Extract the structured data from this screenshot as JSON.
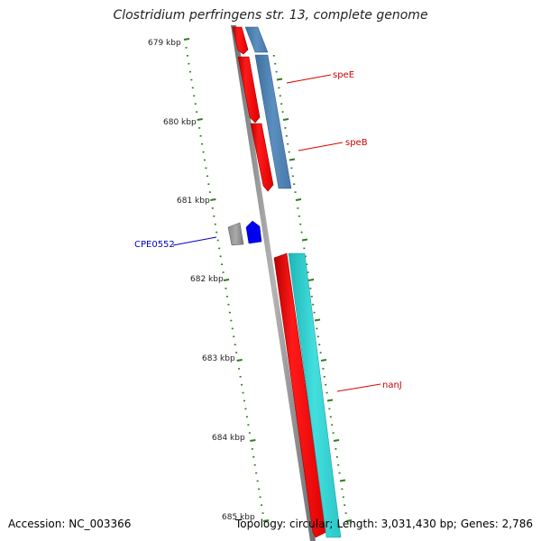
{
  "title": "Clostridium perfringens str. 13, complete genome",
  "footer": {
    "accession": "Accession: NC_003366",
    "topology": "Topology: circular;",
    "length": "Length: 3,031,430 bp;",
    "genes": "Genes: 2,786"
  },
  "ruler": {
    "ticks": [
      "679 kbp",
      "680 kbp",
      "681 kbp",
      "682 kbp",
      "683 kbp",
      "684 kbp",
      "685 kbp"
    ],
    "tick_color": "#2e7d1e"
  },
  "genes": [
    {
      "name": "speE",
      "label_color": "#cc0000",
      "feature_color": "#ff0000",
      "cds_color": "#4f7fae"
    },
    {
      "name": "speB",
      "label_color": "#cc0000",
      "feature_color": "#ff0000",
      "cds_color": "#4f7fae"
    },
    {
      "name": "CPE0552",
      "label_color": "#0000cc",
      "feature_color": "#0000ee",
      "other_color": "#666666"
    },
    {
      "name": "nanJ",
      "label_color": "#cc0000",
      "feature_color": "#ff0000",
      "cds_color": "#33cccc"
    }
  ],
  "backbone_color": "#8a8a8a"
}
